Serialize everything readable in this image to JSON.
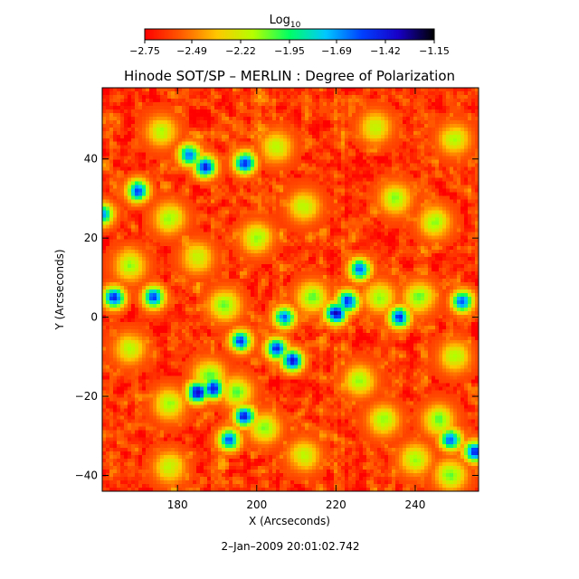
{
  "chart_data": {
    "type": "heatmap",
    "title": "Hinode SOT/SP – MERLIN : Degree of Polarization",
    "xlabel": "X (Arcseconds)",
    "ylabel": "Y (Arcseconds)",
    "timestamp": "2–Jan–2009 20:01:02.742",
    "xlim": [
      161,
      256
    ],
    "ylim": [
      -44,
      58
    ],
    "x_ticks": [
      {
        "value": 180,
        "label": "180"
      },
      {
        "value": 200,
        "label": "200"
      },
      {
        "value": 220,
        "label": "220"
      },
      {
        "value": 240,
        "label": "240"
      }
    ],
    "y_ticks": [
      {
        "value": -40,
        "label": "−40"
      },
      {
        "value": -20,
        "label": "−20"
      },
      {
        "value": 0,
        "label": "0"
      },
      {
        "value": 20,
        "label": "20"
      },
      {
        "value": 40,
        "label": "40"
      }
    ],
    "colorbar": {
      "title": "Log",
      "title_subscript": "10",
      "range": [
        -2.75,
        -1.15
      ],
      "ticks": [
        {
          "value": -2.75,
          "label": "−2.75"
        },
        {
          "value": -2.49,
          "label": "−2.49"
        },
        {
          "value": -2.22,
          "label": "−2.22"
        },
        {
          "value": -1.95,
          "label": "−1.95"
        },
        {
          "value": -1.69,
          "label": "−1.69"
        },
        {
          "value": -1.42,
          "label": "−1.42"
        },
        {
          "value": -1.15,
          "label": "−1.15"
        }
      ],
      "color_stops": [
        "#ff0000",
        "#ff5a00",
        "#ffc800",
        "#b4ff00",
        "#00ff64",
        "#00c8ff",
        "#0040ff",
        "#1800c8",
        "#000000"
      ]
    },
    "background_level": -2.62,
    "high_polarization_regions": [
      {
        "x": 164,
        "y": 5,
        "level": -1.48
      },
      {
        "x": 174,
        "y": 5,
        "level": -1.55
      },
      {
        "x": 170,
        "y": 32,
        "level": -1.5
      },
      {
        "x": 183,
        "y": 41,
        "level": -1.5
      },
      {
        "x": 187,
        "y": 38,
        "level": -1.45
      },
      {
        "x": 197,
        "y": 39,
        "level": -1.5
      },
      {
        "x": 220,
        "y": 1,
        "level": -1.35
      },
      {
        "x": 223,
        "y": 4,
        "level": -1.45
      },
      {
        "x": 196,
        "y": -6,
        "level": -1.55
      },
      {
        "x": 205,
        "y": -8,
        "level": -1.5
      },
      {
        "x": 209,
        "y": -11,
        "level": -1.4
      },
      {
        "x": 185,
        "y": -19,
        "level": -1.35
      },
      {
        "x": 189,
        "y": -18,
        "level": -1.4
      },
      {
        "x": 197,
        "y": -25,
        "level": -1.5
      },
      {
        "x": 193,
        "y": -31,
        "level": -1.55
      },
      {
        "x": 236,
        "y": 0,
        "level": -1.5
      },
      {
        "x": 226,
        "y": 12,
        "level": -1.55
      },
      {
        "x": 249,
        "y": -31,
        "level": -1.5
      },
      {
        "x": 255,
        "y": -34,
        "level": -1.5
      },
      {
        "x": 252,
        "y": 4,
        "level": -1.55
      },
      {
        "x": 207,
        "y": 0,
        "level": -1.6
      },
      {
        "x": 161,
        "y": 26,
        "level": -1.6
      }
    ],
    "moderate_polarization_regions": [
      {
        "x": 188,
        "y": -15,
        "level": -2.0
      },
      {
        "x": 195,
        "y": -19,
        "level": -2.05
      },
      {
        "x": 202,
        "y": -28,
        "level": -2.1
      },
      {
        "x": 178,
        "y": -22,
        "level": -2.1
      },
      {
        "x": 232,
        "y": -26,
        "level": -2.1
      },
      {
        "x": 246,
        "y": -26,
        "level": -2.05
      },
      {
        "x": 240,
        "y": -36,
        "level": -2.1
      },
      {
        "x": 249,
        "y": -40,
        "level": -2.05
      },
      {
        "x": 214,
        "y": 5,
        "level": -2.05
      },
      {
        "x": 231,
        "y": 5,
        "level": -2.1
      },
      {
        "x": 241,
        "y": 5,
        "level": -2.05
      },
      {
        "x": 245,
        "y": 24,
        "level": -2.1
      },
      {
        "x": 200,
        "y": 20,
        "level": -2.1
      },
      {
        "x": 192,
        "y": 3,
        "level": -2.05
      },
      {
        "x": 168,
        "y": 13,
        "level": -2.1
      },
      {
        "x": 178,
        "y": 25,
        "level": -2.1
      },
      {
        "x": 205,
        "y": 43,
        "level": -2.15
      },
      {
        "x": 230,
        "y": 48,
        "level": -2.15
      },
      {
        "x": 250,
        "y": 45,
        "level": -2.15
      },
      {
        "x": 235,
        "y": 30,
        "level": -2.1
      },
      {
        "x": 176,
        "y": 47,
        "level": -2.15
      },
      {
        "x": 212,
        "y": 28,
        "level": -2.15
      },
      {
        "x": 226,
        "y": -16,
        "level": -2.1
      },
      {
        "x": 178,
        "y": -38,
        "level": -2.15
      },
      {
        "x": 212,
        "y": -35,
        "level": -2.15
      },
      {
        "x": 168,
        "y": -8,
        "level": -2.15
      },
      {
        "x": 250,
        "y": -10,
        "level": -2.15
      },
      {
        "x": 185,
        "y": 15,
        "level": -2.15
      }
    ]
  }
}
